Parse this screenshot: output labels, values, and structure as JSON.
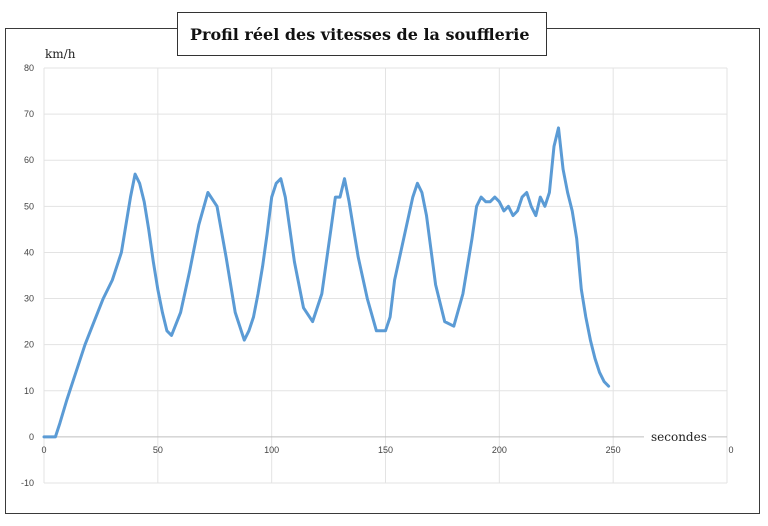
{
  "chart_data": {
    "type": "line",
    "title": "Profil réel des vitesses de la soufflerie",
    "ylabel": "km/h",
    "xlabel": "secondes",
    "ylim": [
      -10,
      80
    ],
    "xlim": [
      0,
      300
    ],
    "y_ticks": [
      "-10",
      "0",
      "10",
      "20",
      "30",
      "40",
      "50",
      "60",
      "70",
      "80"
    ],
    "x_ticks": [
      "0",
      "50",
      "100",
      "150",
      "200",
      "250"
    ],
    "x_tick_partial": "0",
    "grid": true,
    "line_color": "#5b9bd5",
    "series": [
      {
        "x": [
          0,
          5,
          7,
          10,
          14,
          18,
          22,
          26,
          30,
          34,
          38,
          40,
          42,
          44,
          46,
          48,
          50,
          52,
          54,
          56,
          60,
          64,
          68,
          72,
          76,
          80,
          84,
          88,
          90,
          92,
          94,
          96,
          98,
          100,
          102,
          104,
          106,
          108,
          110,
          114,
          118,
          122,
          126,
          128,
          130,
          132,
          134,
          136,
          138,
          142,
          146,
          150,
          152,
          154,
          158,
          162,
          164,
          166,
          168,
          172,
          176,
          180,
          184,
          188,
          190,
          192,
          194,
          196,
          198,
          200,
          202,
          204,
          206,
          208,
          210,
          212,
          214,
          216,
          218,
          220,
          222,
          224,
          226,
          228,
          230,
          232,
          234,
          236,
          238,
          240,
          242,
          244,
          246,
          248
        ],
        "y": [
          0,
          0,
          3,
          8,
          14,
          20,
          25,
          30,
          34,
          40,
          52,
          57,
          55,
          51,
          45,
          38,
          32,
          27,
          23,
          22,
          27,
          36,
          46,
          53,
          50,
          39,
          27,
          21,
          23,
          26,
          31,
          37,
          44,
          52,
          55,
          56,
          52,
          45,
          38,
          28,
          25,
          31,
          45,
          52,
          52,
          56,
          51,
          45,
          39,
          30,
          23,
          23,
          26,
          34,
          43,
          52,
          55,
          53,
          48,
          33,
          25,
          24,
          31,
          43,
          50,
          52,
          51,
          51,
          52,
          51,
          49,
          50,
          48,
          49,
          52,
          53,
          50,
          48,
          52,
          50,
          53,
          63,
          67,
          58,
          53,
          49,
          43,
          32,
          26,
          21,
          17,
          14,
          12,
          11
        ]
      }
    ]
  }
}
